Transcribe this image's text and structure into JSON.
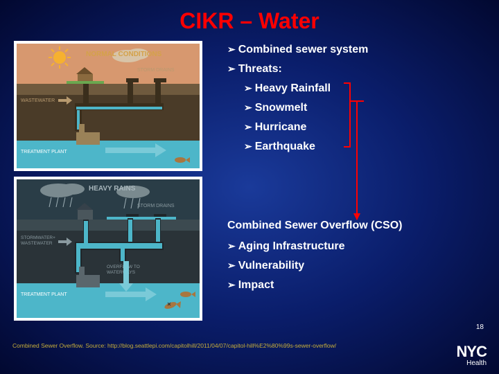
{
  "title": {
    "text": "CIKR – Water",
    "color": "#ff0000"
  },
  "bullets": {
    "arrow_glyph": "➢",
    "top": [
      {
        "text": "Combined sewer system",
        "sub": false
      },
      {
        "text": "Threats:",
        "sub": false
      },
      {
        "text": "Heavy Rainfall",
        "sub": true
      },
      {
        "text": "Snowmelt",
        "sub": true
      },
      {
        "text": "Hurricane",
        "sub": true
      },
      {
        "text": "Earthquake",
        "sub": true
      }
    ],
    "cso_label": "Combined Sewer Overflow (CSO)",
    "bottom": [
      {
        "text": "Aging Infrastructure",
        "sub": false
      },
      {
        "text": "Vulnerability",
        "sub": false
      },
      {
        "text": "Impact",
        "sub": false
      }
    ]
  },
  "diagrams": {
    "normal": {
      "title": "NORMAL CONDITIONS",
      "labels": {
        "storm_drains": "STORM DRAINS",
        "wastewater": "WASTEWATER",
        "treatment": "TREATMENT PLANT"
      },
      "colors": {
        "sky": "#d7986f",
        "ground": "#6f5a3e",
        "below": "#4a3b28",
        "water": "#4db6c9",
        "sun": "#f6b12f",
        "grass": "#6aa84f",
        "pipe": "#3a2e1c",
        "label": "#b89a6f",
        "title": "#d4a24a"
      }
    },
    "heavy": {
      "title": "HEAVY RAINS",
      "labels": {
        "storm_drains": "STORM DRAINS",
        "wastewater": "STORMWATER+\nWASTEWATER",
        "overflow": "OVERFLOW TO\nWATERWAYS",
        "treatment": "TREATMENT PLANT"
      },
      "colors": {
        "sky": "#2a3d47",
        "ground": "#3c4a50",
        "below": "#2a3338",
        "water": "#4db6c9",
        "cloud": "#7a8a8f",
        "pipe": "#1f262a",
        "label": "#8a9aa0",
        "title": "#a8b6bc",
        "fish": "#a8763f"
      }
    }
  },
  "citation": {
    "text": "Combined Sewer Overflow. Source: http://blog.seattlepi.com/capitolhill/2011/04/07/capitol-hill%E2%80%99s-sewer-overflow/",
    "color": "#c7ae3a"
  },
  "slide_number": "18",
  "logo": {
    "top": "NYC",
    "bottom": "Health"
  },
  "arrow_color": "#ff0000"
}
